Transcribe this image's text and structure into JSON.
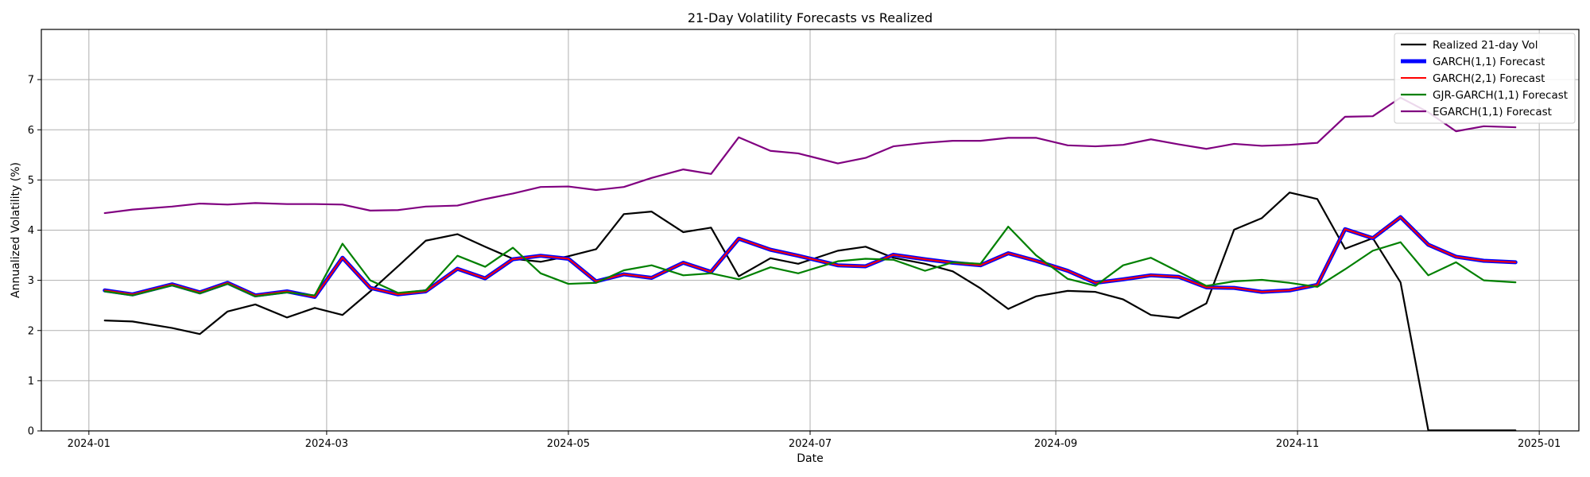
{
  "chart_data": {
    "type": "line",
    "title": "21-Day Volatility Forecasts vs Realized",
    "xlabel": "Date",
    "ylabel": "Annualized Volatility (%)",
    "xlim": [
      "2023-12-20",
      "2025-01-11"
    ],
    "ylim": [
      0,
      8
    ],
    "yticks": [
      0,
      1,
      2,
      3,
      4,
      5,
      6,
      7
    ],
    "xticks": [
      {
        "date": "2024-01-01",
        "label": "2024-01"
      },
      {
        "date": "2024-03-01",
        "label": "2024-03"
      },
      {
        "date": "2024-05-01",
        "label": "2024-05"
      },
      {
        "date": "2024-07-01",
        "label": "2024-07"
      },
      {
        "date": "2024-09-01",
        "label": "2024-09"
      },
      {
        "date": "2024-11-01",
        "label": "2024-11"
      },
      {
        "date": "2025-01-01",
        "label": "2025-01"
      }
    ],
    "grid": true,
    "legend_position": "top-right",
    "x": [
      "2024-01-05",
      "2024-01-12",
      "2024-01-22",
      "2024-01-29",
      "2024-02-05",
      "2024-02-12",
      "2024-02-20",
      "2024-02-27",
      "2024-03-05",
      "2024-03-12",
      "2024-03-19",
      "2024-03-26",
      "2024-04-03",
      "2024-04-10",
      "2024-04-17",
      "2024-04-24",
      "2024-05-01",
      "2024-05-08",
      "2024-05-15",
      "2024-05-22",
      "2024-05-30",
      "2024-06-06",
      "2024-06-13",
      "2024-06-21",
      "2024-06-28",
      "2024-07-08",
      "2024-07-15",
      "2024-07-22",
      "2024-07-30",
      "2024-08-06",
      "2024-08-13",
      "2024-08-20",
      "2024-08-27",
      "2024-09-04",
      "2024-09-11",
      "2024-09-18",
      "2024-09-25",
      "2024-10-02",
      "2024-10-09",
      "2024-10-16",
      "2024-10-23",
      "2024-10-30",
      "2024-11-06",
      "2024-11-13",
      "2024-11-20",
      "2024-11-27",
      "2024-12-04",
      "2024-12-11",
      "2024-12-18",
      "2024-12-26"
    ],
    "series": [
      {
        "name": "Realized 21-day Vol",
        "color": "#000000",
        "width": 2.2,
        "values": [
          2.2,
          2.18,
          2.05,
          1.93,
          2.38,
          2.52,
          2.26,
          2.45,
          2.31,
          2.78,
          3.28,
          3.79,
          3.92,
          3.67,
          3.43,
          3.37,
          3.48,
          3.62,
          4.32,
          4.37,
          3.96,
          4.05,
          3.08,
          3.44,
          3.33,
          3.59,
          3.67,
          3.45,
          3.33,
          3.18,
          2.84,
          2.43,
          2.68,
          2.79,
          2.77,
          2.62,
          2.31,
          2.25,
          2.54,
          4.01,
          4.24,
          4.75,
          4.62,
          3.63,
          3.84,
          2.96,
          0.01,
          0.01,
          0.01,
          0.01
        ]
      },
      {
        "name": "GARCH(1,1) Forecast",
        "color": "#0000ff",
        "width": 5,
        "values": [
          2.8,
          2.72,
          2.92,
          2.76,
          2.95,
          2.7,
          2.78,
          2.67,
          3.45,
          2.85,
          2.72,
          2.78,
          3.23,
          3.04,
          3.42,
          3.49,
          3.43,
          2.98,
          3.12,
          3.05,
          3.35,
          3.17,
          3.83,
          3.61,
          3.49,
          3.3,
          3.28,
          3.51,
          3.42,
          3.35,
          3.3,
          3.54,
          3.39,
          3.19,
          2.95,
          3.02,
          3.1,
          3.07,
          2.86,
          2.85,
          2.77,
          2.8,
          2.91,
          4.02,
          3.84,
          4.26,
          3.71,
          3.47,
          3.39,
          3.36
        ]
      },
      {
        "name": "GARCH(2,1) Forecast",
        "color": "#ff0000",
        "width": 2,
        "values": [
          2.8,
          2.72,
          2.92,
          2.76,
          2.95,
          2.7,
          2.78,
          2.67,
          3.45,
          2.85,
          2.72,
          2.78,
          3.23,
          3.04,
          3.42,
          3.49,
          3.43,
          2.98,
          3.12,
          3.05,
          3.35,
          3.17,
          3.83,
          3.61,
          3.49,
          3.3,
          3.28,
          3.51,
          3.42,
          3.35,
          3.3,
          3.54,
          3.39,
          3.19,
          2.95,
          3.02,
          3.1,
          3.07,
          2.86,
          2.85,
          2.77,
          2.8,
          2.91,
          4.02,
          3.84,
          4.26,
          3.71,
          3.47,
          3.39,
          3.36
        ]
      },
      {
        "name": "GJR-GARCH(1,1) Forecast",
        "color": "#008000",
        "width": 2.2,
        "values": [
          2.78,
          2.7,
          2.9,
          2.74,
          2.93,
          2.68,
          2.76,
          2.7,
          3.73,
          3.0,
          2.75,
          2.8,
          3.49,
          3.27,
          3.65,
          3.14,
          2.93,
          2.95,
          3.2,
          3.3,
          3.1,
          3.14,
          3.02,
          3.26,
          3.14,
          3.38,
          3.43,
          3.41,
          3.19,
          3.36,
          3.33,
          4.07,
          3.5,
          3.03,
          2.89,
          3.3,
          3.45,
          3.17,
          2.89,
          2.98,
          3.01,
          2.95,
          2.87,
          3.22,
          3.59,
          3.76,
          3.1,
          3.36,
          3.0,
          2.96
        ]
      },
      {
        "name": "EGARCH(1,1) Forecast",
        "color": "#800080",
        "width": 2.2,
        "values": [
          4.34,
          4.41,
          4.47,
          4.53,
          4.51,
          4.54,
          4.52,
          4.52,
          4.51,
          4.39,
          4.4,
          4.47,
          4.49,
          4.62,
          4.73,
          4.86,
          4.87,
          4.8,
          4.86,
          5.04,
          5.21,
          5.12,
          5.85,
          5.58,
          5.53,
          5.33,
          5.44,
          5.67,
          5.74,
          5.78,
          5.78,
          5.84,
          5.84,
          5.69,
          5.67,
          5.7,
          5.81,
          5.71,
          5.62,
          5.72,
          5.68,
          5.7,
          5.74,
          6.26,
          6.27,
          6.64,
          6.35,
          5.97,
          6.07,
          6.05
        ]
      }
    ]
  }
}
